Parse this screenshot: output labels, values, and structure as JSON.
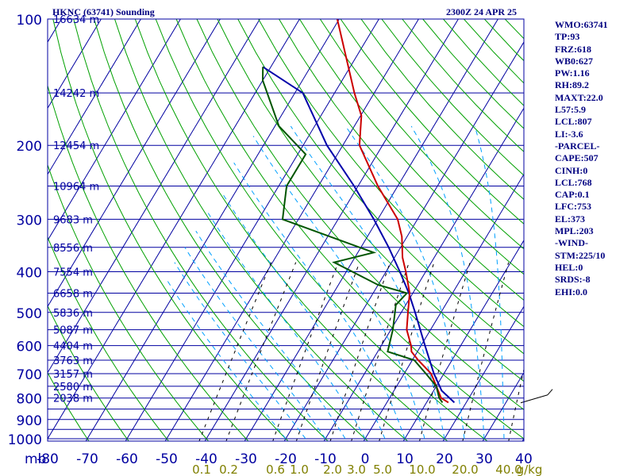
{
  "header": {
    "station": "HKNC (63741) Sounding",
    "time": "2300Z 24 APR 25"
  },
  "stats": [
    "WMO:63741",
    "TP:93",
    "FRZ:618",
    "WB0:627",
    "PW:1.16",
    "RH:89.2",
    "MAXT:22.0",
    "L57:5.9",
    "LCL:807",
    "LI:-3.6",
    "-PARCEL-",
    "CAPE:507",
    "CINH:0",
    "LCL:768",
    "CAP:0.1",
    "LFC:753",
    "EL:373",
    "MPL:203",
    "-WIND-",
    "STM:225/10",
    "HEL:0",
    "SRDS:-8",
    "EHI:0.0"
  ],
  "colors": {
    "isobar": "#0000a0",
    "isotherm": "#0000a0",
    "dry_adiabat": "#00a000",
    "moist_adiabat": "#00a0ff",
    "mixing_ratio": "#000000",
    "temperature": "#cc0000",
    "dewpoint": "#005500",
    "parcel": "#0000aa",
    "axis_text": "#0000a0",
    "mixing_text": "#808000"
  },
  "chart_data": {
    "type": "skew-t",
    "xlabel": "mb",
    "pressure_ticks": [
      100,
      200,
      300,
      400,
      500,
      600,
      700,
      800,
      900,
      1000
    ],
    "temperature_ticks": [
      -80,
      -70,
      -60,
      -50,
      -40,
      -30,
      -20,
      -10,
      0,
      10,
      20,
      30,
      40
    ],
    "mixing_ratio_ticks": [
      "0.1",
      "0.2",
      "0.6",
      "1.0",
      "2.0",
      "3.0",
      "5.0",
      "10.0",
      "20.0",
      "40.0",
      "g/kg"
    ],
    "height_labels": [
      {
        "p": 100,
        "label": "16634 m"
      },
      {
        "p": 150,
        "label": "14242 m"
      },
      {
        "p": 200,
        "label": "12454 m"
      },
      {
        "p": 250,
        "label": "10964 m"
      },
      {
        "p": 300,
        "label": "9683 m"
      },
      {
        "p": 350,
        "label": "8556 m"
      },
      {
        "p": 400,
        "label": "7554 m"
      },
      {
        "p": 450,
        "label": "6658 m"
      },
      {
        "p": 500,
        "label": "5836 m"
      },
      {
        "p": 550,
        "label": "5087 m"
      },
      {
        "p": 600,
        "label": "4404 m"
      },
      {
        "p": 650,
        "label": "3763 m"
      },
      {
        "p": 700,
        "label": "3157 m"
      },
      {
        "p": 750,
        "label": "2580 m"
      },
      {
        "p": 800,
        "label": "2038 m"
      }
    ],
    "temperature_profile": [
      {
        "p": 820,
        "t": 15.5
      },
      {
        "p": 800,
        "t": 13.0
      },
      {
        "p": 750,
        "t": 10.0
      },
      {
        "p": 700,
        "t": 6.8
      },
      {
        "p": 650,
        "t": 1.5
      },
      {
        "p": 620,
        "t": -1.5
      },
      {
        "p": 600,
        "t": -2.5
      },
      {
        "p": 550,
        "t": -6.0
      },
      {
        "p": 500,
        "t": -8.3
      },
      {
        "p": 450,
        "t": -10.8
      },
      {
        "p": 400,
        "t": -15.0
      },
      {
        "p": 370,
        "t": -18.0
      },
      {
        "p": 330,
        "t": -21.3
      },
      {
        "p": 300,
        "t": -25.0
      },
      {
        "p": 250,
        "t": -35.0
      },
      {
        "p": 200,
        "t": -45.8
      },
      {
        "p": 170,
        "t": -49.8
      },
      {
        "p": 150,
        "t": -55.0
      },
      {
        "p": 100,
        "t": -70.5
      }
    ],
    "dewpoint_profile": [
      {
        "p": 820,
        "t": 14.0
      },
      {
        "p": 800,
        "t": 12.5
      },
      {
        "p": 750,
        "t": 10.0
      },
      {
        "p": 700,
        "t": 5.5
      },
      {
        "p": 650,
        "t": 0.5
      },
      {
        "p": 620,
        "t": -7.5
      },
      {
        "p": 550,
        "t": -9.5
      },
      {
        "p": 480,
        "t": -12.5
      },
      {
        "p": 450,
        "t": -11.5
      },
      {
        "p": 430,
        "t": -20.0
      },
      {
        "p": 380,
        "t": -34.5
      },
      {
        "p": 360,
        "t": -26.0
      },
      {
        "p": 300,
        "t": -54.0
      },
      {
        "p": 250,
        "t": -58.0
      },
      {
        "p": 210,
        "t": -58.0
      },
      {
        "p": 180,
        "t": -69.0
      },
      {
        "p": 140,
        "t": -80.0
      },
      {
        "p": 130,
        "t": -82.0
      }
    ],
    "parcel_profile": [
      {
        "p": 820,
        "t": 17.0
      },
      {
        "p": 768,
        "t": 12.0
      },
      {
        "p": 700,
        "t": 7.5
      },
      {
        "p": 600,
        "t": 1.0
      },
      {
        "p": 500,
        "t": -6.5
      },
      {
        "p": 450,
        "t": -11.0
      },
      {
        "p": 400,
        "t": -16.5
      },
      {
        "p": 350,
        "t": -23.0
      },
      {
        "p": 300,
        "t": -31.0
      },
      {
        "p": 250,
        "t": -41.0
      },
      {
        "p": 200,
        "t": -54.0
      },
      {
        "p": 150,
        "t": -68.0
      },
      {
        "p": 130,
        "t": -82.0
      }
    ],
    "wind_barbs": [
      {
        "p": 800,
        "dir": 270,
        "speed_kt": 10
      }
    ],
    "ylim": [
      100,
      1050
    ],
    "xlim": [
      -80,
      40
    ],
    "grid": true
  }
}
